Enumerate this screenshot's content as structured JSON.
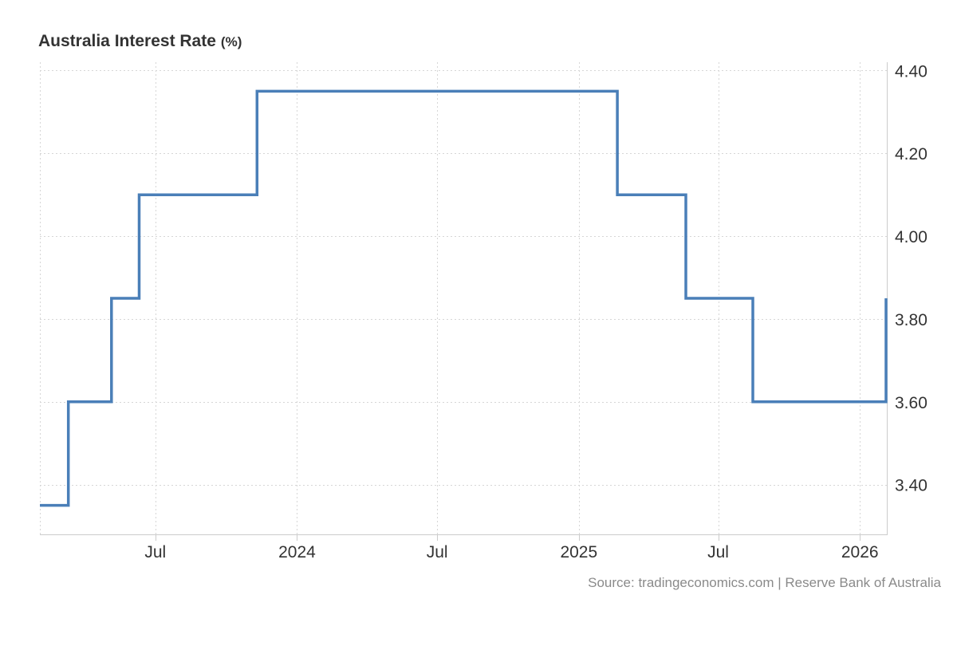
{
  "chart_data": {
    "type": "line",
    "step": true,
    "title": "Australia Interest Rate",
    "unit": "(%)",
    "xlabel": "",
    "ylabel": "",
    "source": "Source: tradingeconomics.com | Reserve Bank of Australia",
    "line_color": "#4a7fb8",
    "grid": true,
    "y_axis_position": "right",
    "ylim": [
      3.28,
      4.42
    ],
    "yticks": [
      3.4,
      3.6,
      3.8,
      4.0,
      4.2,
      4.4
    ],
    "ytick_labels": [
      "3.40",
      "3.60",
      "3.80",
      "4.00",
      "4.20",
      "4.40"
    ],
    "xlim": [
      "2023-02-01",
      "2026-02-05"
    ],
    "xticks": [
      "2023-07-01",
      "2024-01-01",
      "2024-07-01",
      "2025-01-01",
      "2025-07-01",
      "2026-01-01"
    ],
    "xtick_labels": [
      "Jul",
      "2024",
      "Jul",
      "2025",
      "Jul",
      "2026"
    ],
    "series": [
      {
        "x": [
          "2023-02-01",
          "2023-02-10",
          "2023-03-10",
          "2023-05-05",
          "2023-06-10",
          "2023-11-10",
          "2024-03-10",
          "2025-02-20",
          "2025-05-20",
          "2025-08-15",
          "2026-02-04"
        ],
        "values": [
          3.35,
          3.35,
          3.6,
          3.85,
          4.1,
          4.35,
          4.35,
          4.1,
          3.85,
          3.6,
          3.85
        ]
      }
    ]
  }
}
